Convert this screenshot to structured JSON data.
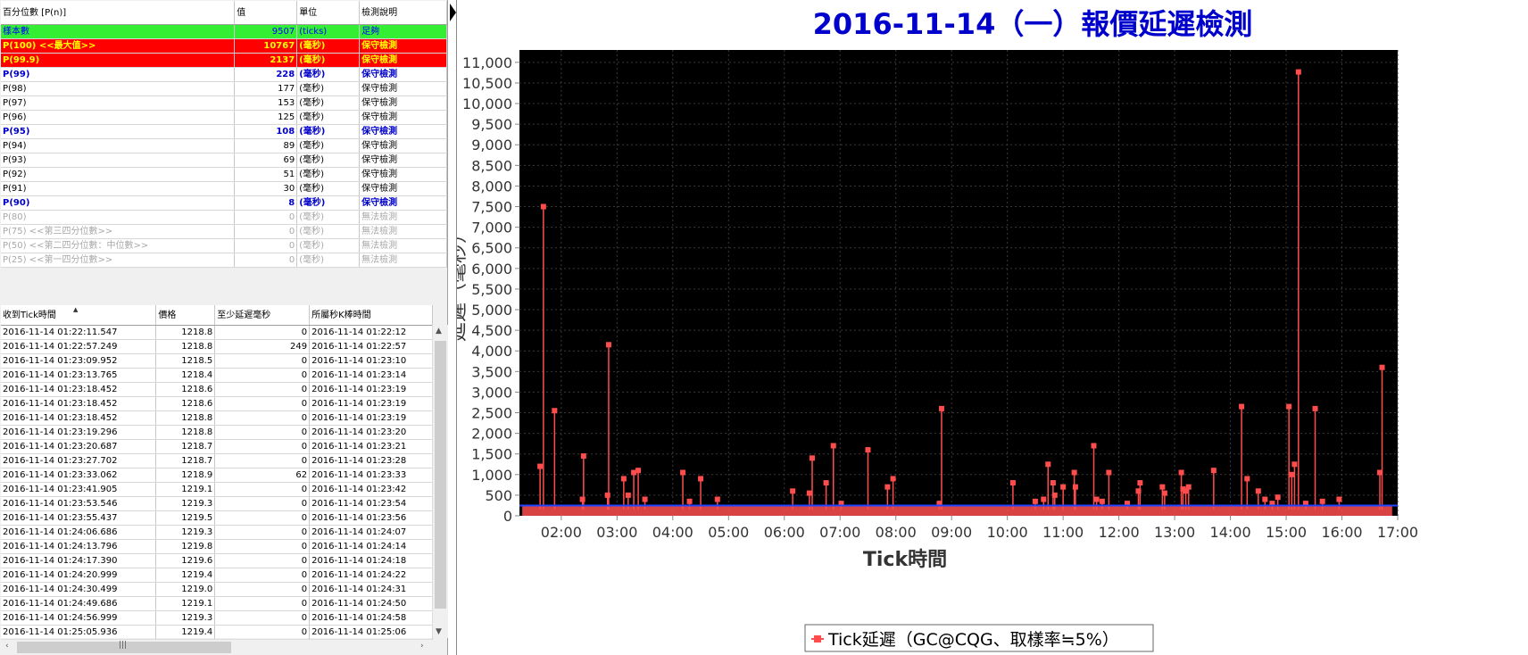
{
  "percentile_table": {
    "headers": [
      "百分位數 [P(n)]",
      "值",
      "單位",
      "檢測說明"
    ],
    "rows": [
      {
        "label": "樣本數",
        "value": "9507",
        "unit": "(ticks)",
        "note": "足夠",
        "style": "green"
      },
      {
        "label": "P(100) <<最大值>>",
        "value": "10767",
        "unit": "(毫秒)",
        "note": "保守檢測",
        "style": "red"
      },
      {
        "label": "P(99.9)",
        "value": "2137",
        "unit": "(毫秒)",
        "note": "保守檢測",
        "style": "red"
      },
      {
        "label": "P(99)",
        "value": "228",
        "unit": "(毫秒)",
        "note": "保守檢測",
        "style": "blue"
      },
      {
        "label": "P(98)",
        "value": "177",
        "unit": "(毫秒)",
        "note": "保守檢測",
        "style": "normal"
      },
      {
        "label": "P(97)",
        "value": "153",
        "unit": "(毫秒)",
        "note": "保守檢測",
        "style": "normal"
      },
      {
        "label": "P(96)",
        "value": "125",
        "unit": "(毫秒)",
        "note": "保守檢測",
        "style": "normal"
      },
      {
        "label": "P(95)",
        "value": "108",
        "unit": "(毫秒)",
        "note": "保守檢測",
        "style": "blue"
      },
      {
        "label": "P(94)",
        "value": "89",
        "unit": "(毫秒)",
        "note": "保守檢測",
        "style": "normal"
      },
      {
        "label": "P(93)",
        "value": "69",
        "unit": "(毫秒)",
        "note": "保守檢測",
        "style": "normal"
      },
      {
        "label": "P(92)",
        "value": "51",
        "unit": "(毫秒)",
        "note": "保守檢測",
        "style": "normal"
      },
      {
        "label": "P(91)",
        "value": "30",
        "unit": "(毫秒)",
        "note": "保守檢測",
        "style": "normal"
      },
      {
        "label": "P(90)",
        "value": "8",
        "unit": "(毫秒)",
        "note": "保守檢測",
        "style": "blue"
      },
      {
        "label": "P(80)",
        "value": "0",
        "unit": "(毫秒)",
        "note": "無法檢測",
        "style": "gray"
      },
      {
        "label": "P(75) <<第三四分位數>>",
        "value": "0",
        "unit": "(毫秒)",
        "note": "無法檢測",
        "style": "gray"
      },
      {
        "label": "P(50) <<第二四分位數：中位數>>",
        "value": "0",
        "unit": "(毫秒)",
        "note": "無法檢測",
        "style": "gray"
      },
      {
        "label": "P(25) <<第一四分位數>>",
        "value": "0",
        "unit": "(毫秒)",
        "note": "無法檢測",
        "style": "gray"
      }
    ]
  },
  "tick_table": {
    "headers": [
      "收到Tick時間",
      "價格",
      "至少延遲毫秒",
      "所屬秒K棒時間"
    ],
    "rows": [
      [
        "2016-11-14 01:22:11.547",
        "1218.8",
        "0",
        "2016-11-14 01:22:12"
      ],
      [
        "2016-11-14 01:22:57.249",
        "1218.8",
        "249",
        "2016-11-14 01:22:57"
      ],
      [
        "2016-11-14 01:23:09.952",
        "1218.5",
        "0",
        "2016-11-14 01:23:10"
      ],
      [
        "2016-11-14 01:23:13.765",
        "1218.4",
        "0",
        "2016-11-14 01:23:14"
      ],
      [
        "2016-11-14 01:23:18.452",
        "1218.6",
        "0",
        "2016-11-14 01:23:19"
      ],
      [
        "2016-11-14 01:23:18.452",
        "1218.6",
        "0",
        "2016-11-14 01:23:19"
      ],
      [
        "2016-11-14 01:23:18.452",
        "1218.8",
        "0",
        "2016-11-14 01:23:19"
      ],
      [
        "2016-11-14 01:23:19.296",
        "1218.8",
        "0",
        "2016-11-14 01:23:20"
      ],
      [
        "2016-11-14 01:23:20.687",
        "1218.7",
        "0",
        "2016-11-14 01:23:21"
      ],
      [
        "2016-11-14 01:23:27.702",
        "1218.7",
        "0",
        "2016-11-14 01:23:28"
      ],
      [
        "2016-11-14 01:23:33.062",
        "1218.9",
        "62",
        "2016-11-14 01:23:33"
      ],
      [
        "2016-11-14 01:23:41.905",
        "1219.1",
        "0",
        "2016-11-14 01:23:42"
      ],
      [
        "2016-11-14 01:23:53.546",
        "1219.3",
        "0",
        "2016-11-14 01:23:54"
      ],
      [
        "2016-11-14 01:23:55.437",
        "1219.5",
        "0",
        "2016-11-14 01:23:56"
      ],
      [
        "2016-11-14 01:24:06.686",
        "1219.3",
        "0",
        "2016-11-14 01:24:07"
      ],
      [
        "2016-11-14 01:24:13.796",
        "1219.8",
        "0",
        "2016-11-14 01:24:14"
      ],
      [
        "2016-11-14 01:24:17.390",
        "1219.6",
        "0",
        "2016-11-14 01:24:18"
      ],
      [
        "2016-11-14 01:24:20.999",
        "1219.4",
        "0",
        "2016-11-14 01:24:22"
      ],
      [
        "2016-11-14 01:24:30.499",
        "1219.0",
        "0",
        "2016-11-14 01:24:31"
      ],
      [
        "2016-11-14 01:24:49.686",
        "1219.1",
        "0",
        "2016-11-14 01:24:50"
      ],
      [
        "2016-11-14 01:24:56.999",
        "1219.3",
        "0",
        "2016-11-14 01:24:58"
      ],
      [
        "2016-11-14 01:25:05.936",
        "1219.4",
        "0",
        "2016-11-14 01:25:06"
      ]
    ]
  },
  "scrollbar_icons": {
    "up": "▲",
    "down": "▼",
    "left": "‹",
    "right": "›",
    "grip": "|||"
  },
  "colors": {
    "plot_bg": "#000000",
    "series": "#ff4d4d",
    "title": "#0000cc",
    "baseline": "#2244ff"
  },
  "chart_data": {
    "type": "line",
    "title": "2016-11-14（一）報價延遲檢測",
    "xlabel": "Tick時間",
    "ylabel": "延遲（毫秒）",
    "x_ticks": [
      "02:00",
      "03:00",
      "04:00",
      "05:00",
      "06:00",
      "07:00",
      "08:00",
      "09:00",
      "10:00",
      "11:00",
      "12:00",
      "13:00",
      "14:00",
      "15:00",
      "16:00",
      "17:00"
    ],
    "y_ticks": [
      "0",
      "500",
      "1,000",
      "1,500",
      "2,000",
      "2,500",
      "3,000",
      "3,500",
      "4,000",
      "4,500",
      "5,000",
      "5,500",
      "6,000",
      "6,500",
      "7,000",
      "7,500",
      "8,000",
      "8,500",
      "9,000",
      "9,500",
      "10,000",
      "10,500",
      "11,000"
    ],
    "xlim_hours": [
      1.25,
      17.0
    ],
    "ylim": [
      0,
      11300
    ],
    "baseline_ms": 250,
    "legend": {
      "label": "Tick延遲（GC@CQG、取樣率≒5%）",
      "position": "bottom-center"
    },
    "series": [
      {
        "name": "Tick延遲（GC@CQG、取樣率≒5%）",
        "points": [
          [
            1.62,
            1200
          ],
          [
            1.68,
            7500
          ],
          [
            1.88,
            2550
          ],
          [
            2.4,
            1450
          ],
          [
            2.38,
            400
          ],
          [
            2.85,
            4150
          ],
          [
            2.83,
            500
          ],
          [
            3.12,
            900
          ],
          [
            3.2,
            500
          ],
          [
            3.3,
            1050
          ],
          [
            3.38,
            1100
          ],
          [
            3.5,
            400
          ],
          [
            4.18,
            1050
          ],
          [
            4.3,
            350
          ],
          [
            4.5,
            900
          ],
          [
            4.8,
            400
          ],
          [
            6.15,
            600
          ],
          [
            6.45,
            550
          ],
          [
            6.5,
            1400
          ],
          [
            6.75,
            800
          ],
          [
            6.88,
            1700
          ],
          [
            7.02,
            300
          ],
          [
            7.5,
            1600
          ],
          [
            7.85,
            700
          ],
          [
            7.95,
            900
          ],
          [
            8.82,
            2600
          ],
          [
            8.78,
            300
          ],
          [
            10.1,
            800
          ],
          [
            10.5,
            350
          ],
          [
            10.65,
            400
          ],
          [
            10.73,
            1250
          ],
          [
            10.82,
            800
          ],
          [
            10.85,
            500
          ],
          [
            11.0,
            700
          ],
          [
            11.2,
            1050
          ],
          [
            11.22,
            700
          ],
          [
            11.55,
            1700
          ],
          [
            11.6,
            400
          ],
          [
            11.7,
            350
          ],
          [
            11.82,
            1050
          ],
          [
            12.15,
            300
          ],
          [
            12.35,
            600
          ],
          [
            12.38,
            800
          ],
          [
            12.78,
            700
          ],
          [
            12.82,
            550
          ],
          [
            13.12,
            1050
          ],
          [
            13.15,
            650
          ],
          [
            13.2,
            600
          ],
          [
            13.25,
            700
          ],
          [
            13.7,
            1100
          ],
          [
            14.2,
            2650
          ],
          [
            14.3,
            900
          ],
          [
            14.5,
            600
          ],
          [
            14.62,
            400
          ],
          [
            14.75,
            300
          ],
          [
            14.85,
            450
          ],
          [
            15.05,
            2650
          ],
          [
            15.1,
            1000
          ],
          [
            15.15,
            1250
          ],
          [
            15.22,
            10767
          ],
          [
            15.35,
            300
          ],
          [
            15.52,
            2600
          ],
          [
            15.65,
            350
          ],
          [
            15.95,
            400
          ],
          [
            16.68,
            1050
          ],
          [
            16.72,
            3600
          ]
        ]
      }
    ]
  }
}
